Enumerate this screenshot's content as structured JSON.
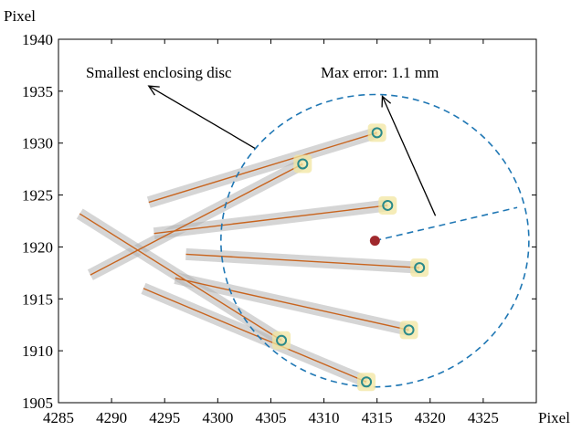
{
  "chart_data": {
    "type": "line",
    "title": "",
    "xlabel": "Pixel",
    "ylabel": "Pixel",
    "xlim": [
      4285,
      4330
    ],
    "ylim": [
      1905,
      1940
    ],
    "xticks": [
      4285,
      4290,
      4295,
      4300,
      4305,
      4310,
      4315,
      4320,
      4325
    ],
    "yticks": [
      1905,
      1910,
      1915,
      1920,
      1925,
      1930,
      1935,
      1940
    ],
    "grid": false,
    "legend": "none",
    "colors": {
      "line": "#c8641e",
      "band": "#b4b4b4",
      "marker": "#2a8a8a",
      "marker_glow": "#f2e6a0",
      "disc": "#1f77b4",
      "center": "#a0282d"
    },
    "lines": [
      {
        "x": [
          4293.5,
          4315
        ],
        "y": [
          1924.3,
          1931
        ]
      },
      {
        "x": [
          4288,
          4308
        ],
        "y": [
          1917.3,
          1928
        ]
      },
      {
        "x": [
          4294,
          4316
        ],
        "y": [
          1921.3,
          1924
        ]
      },
      {
        "x": [
          4297,
          4319
        ],
        "y": [
          1919.3,
          1918
        ]
      },
      {
        "x": [
          4296,
          4318
        ],
        "y": [
          1917,
          1912
        ]
      },
      {
        "x": [
          4293,
          4314
        ],
        "y": [
          1916,
          1907
        ]
      },
      {
        "x": [
          4287,
          4306
        ],
        "y": [
          1923.2,
          1911
        ]
      }
    ],
    "markers": [
      {
        "x": 4315,
        "y": 1931
      },
      {
        "x": 4308,
        "y": 1928
      },
      {
        "x": 4316,
        "y": 1924
      },
      {
        "x": 4319,
        "y": 1918
      },
      {
        "x": 4318,
        "y": 1912
      },
      {
        "x": 4306,
        "y": 1911
      },
      {
        "x": 4314,
        "y": 1907
      }
    ],
    "disc": {
      "center": [
        4314.8,
        1920.6
      ],
      "radius_x": 14.5
    },
    "annotations": [
      {
        "text": "Smallest enclosing disc",
        "arrow_from": [
          4303.5,
          1929.5
        ],
        "arrow_to": [
          4293.5,
          1935.5
        ]
      },
      {
        "text": "Max error: 1.1 mm",
        "arrow_from": [
          4320.5,
          1923
        ],
        "arrow_to": [
          4315.5,
          1934.5
        ]
      }
    ]
  }
}
